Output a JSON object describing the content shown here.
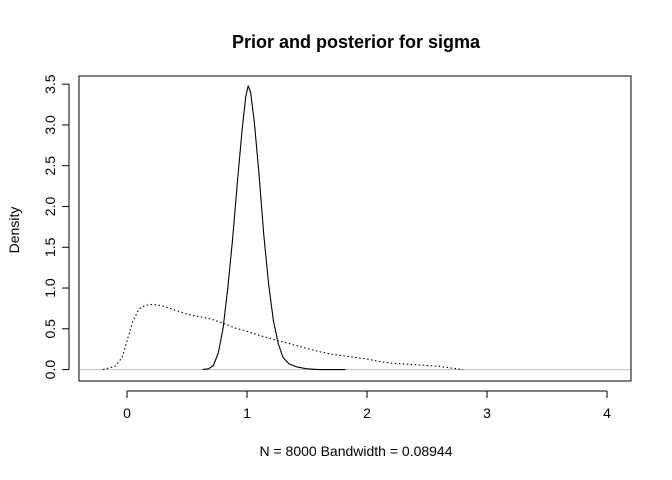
{
  "chart_data": {
    "type": "line",
    "title": "Prior and posterior for sigma",
    "xlabel": "N = 8000   Bandwidth = 0.08944",
    "ylabel": "Density",
    "xlim": [
      -0.4,
      4.2
    ],
    "ylim": [
      -0.14,
      3.6
    ],
    "x_ticks": [
      {
        "value": 0,
        "label": "0"
      },
      {
        "value": 1,
        "label": "1"
      },
      {
        "value": 2,
        "label": "2"
      },
      {
        "value": 3,
        "label": "3"
      },
      {
        "value": 4,
        "label": "4"
      }
    ],
    "y_ticks": [
      {
        "value": 0.0,
        "label": "0.0"
      },
      {
        "value": 0.5,
        "label": "0.5"
      },
      {
        "value": 1.0,
        "label": "1.0"
      },
      {
        "value": 1.5,
        "label": "1.5"
      },
      {
        "value": 2.0,
        "label": "2.0"
      },
      {
        "value": 2.5,
        "label": "2.5"
      },
      {
        "value": 3.0,
        "label": "3.0"
      },
      {
        "value": 3.5,
        "label": "3.5"
      }
    ],
    "baseline": {
      "y": 0,
      "color": "#bebebe"
    },
    "series": [
      {
        "line_style": "solid",
        "color": "#000000",
        "points": [
          [
            0.63,
            0.0
          ],
          [
            0.68,
            0.01
          ],
          [
            0.72,
            0.05
          ],
          [
            0.76,
            0.2
          ],
          [
            0.8,
            0.5
          ],
          [
            0.84,
            1.0
          ],
          [
            0.88,
            1.6
          ],
          [
            0.92,
            2.3
          ],
          [
            0.96,
            2.95
          ],
          [
            0.99,
            3.35
          ],
          [
            1.01,
            3.48
          ],
          [
            1.03,
            3.4
          ],
          [
            1.06,
            3.05
          ],
          [
            1.1,
            2.4
          ],
          [
            1.14,
            1.65
          ],
          [
            1.18,
            1.05
          ],
          [
            1.22,
            0.6
          ],
          [
            1.26,
            0.32
          ],
          [
            1.3,
            0.15
          ],
          [
            1.35,
            0.07
          ],
          [
            1.42,
            0.03
          ],
          [
            1.5,
            0.01
          ],
          [
            1.6,
            0.0
          ],
          [
            1.82,
            0.0
          ]
        ]
      },
      {
        "line_style": "dotted",
        "color": "#000000",
        "points": [
          [
            -0.2,
            0.0
          ],
          [
            -0.1,
            0.04
          ],
          [
            -0.04,
            0.15
          ],
          [
            0.0,
            0.35
          ],
          [
            0.05,
            0.6
          ],
          [
            0.1,
            0.74
          ],
          [
            0.15,
            0.79
          ],
          [
            0.22,
            0.8
          ],
          [
            0.3,
            0.78
          ],
          [
            0.4,
            0.73
          ],
          [
            0.5,
            0.68
          ],
          [
            0.6,
            0.65
          ],
          [
            0.7,
            0.62
          ],
          [
            0.8,
            0.57
          ],
          [
            0.9,
            0.51
          ],
          [
            1.0,
            0.47
          ],
          [
            1.1,
            0.42
          ],
          [
            1.2,
            0.38
          ],
          [
            1.3,
            0.34
          ],
          [
            1.4,
            0.3
          ],
          [
            1.5,
            0.26
          ],
          [
            1.6,
            0.22
          ],
          [
            1.7,
            0.19
          ],
          [
            1.8,
            0.17
          ],
          [
            1.9,
            0.15
          ],
          [
            2.0,
            0.13
          ],
          [
            2.1,
            0.1
          ],
          [
            2.2,
            0.08
          ],
          [
            2.3,
            0.07
          ],
          [
            2.4,
            0.06
          ],
          [
            2.5,
            0.05
          ],
          [
            2.6,
            0.04
          ],
          [
            2.7,
            0.02
          ],
          [
            2.8,
            0.0
          ]
        ]
      }
    ]
  }
}
